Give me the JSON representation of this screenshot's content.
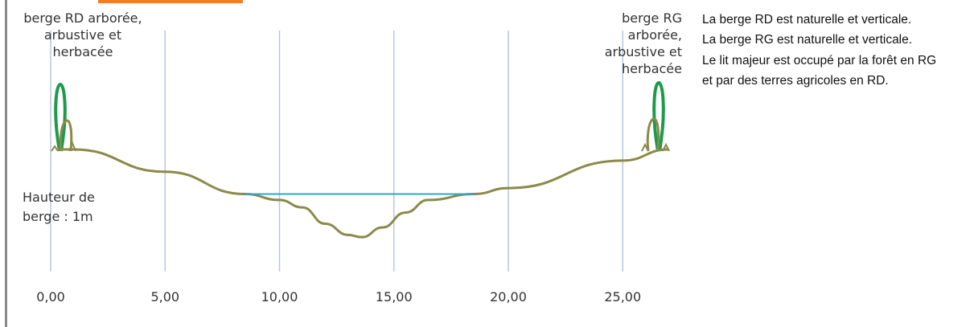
{
  "chart_data": {
    "type": "line",
    "xlim": [
      0,
      27
    ],
    "xticks": [
      "0,00",
      "5,00",
      "10,00",
      "15,00",
      "20,00",
      "25,00"
    ],
    "xtick_values": [
      0,
      5,
      10,
      15,
      20,
      25
    ],
    "grid": "vertical",
    "series": [
      {
        "kind": "ground_profile",
        "color": "#8a8a4a",
        "points": [
          [
            0.3,
            0.0
          ],
          [
            1.0,
            0.0
          ],
          [
            5.0,
            -0.3
          ],
          [
            8.5,
            -0.6
          ],
          [
            10.0,
            -0.68
          ],
          [
            11.0,
            -0.78
          ],
          [
            12.0,
            -1.0
          ],
          [
            13.0,
            -1.15
          ],
          [
            13.6,
            -1.18
          ],
          [
            14.5,
            -1.05
          ],
          [
            15.5,
            -0.85
          ],
          [
            16.5,
            -0.68
          ],
          [
            18.5,
            -0.6
          ],
          [
            20.0,
            -0.52
          ],
          [
            25.0,
            -0.15
          ],
          [
            27.0,
            0.0
          ]
        ]
      },
      {
        "kind": "water_surface",
        "color": "#29a8d1",
        "x": [
          8.5,
          18.5
        ],
        "y": -0.6
      }
    ]
  },
  "labels": {
    "bank_rd": "berge RD arborée, arbustive et herbacée",
    "bank_rg": "berge RG arborée, arbustive et herbacée",
    "bank_height": "Hauteur de berge : 1m"
  },
  "description": [
    "La berge RD est naturelle et verticale.",
    "La berge RG est naturelle et verticale.",
    "Le lit majeur est occupé par la forêt en RG et par des terres agricoles en RD."
  ],
  "colors": {
    "grid": "#b8c6dc",
    "tree_green": "#1f9a4c",
    "shrub": "#8a8a4a",
    "accent": "#f07e26"
  }
}
